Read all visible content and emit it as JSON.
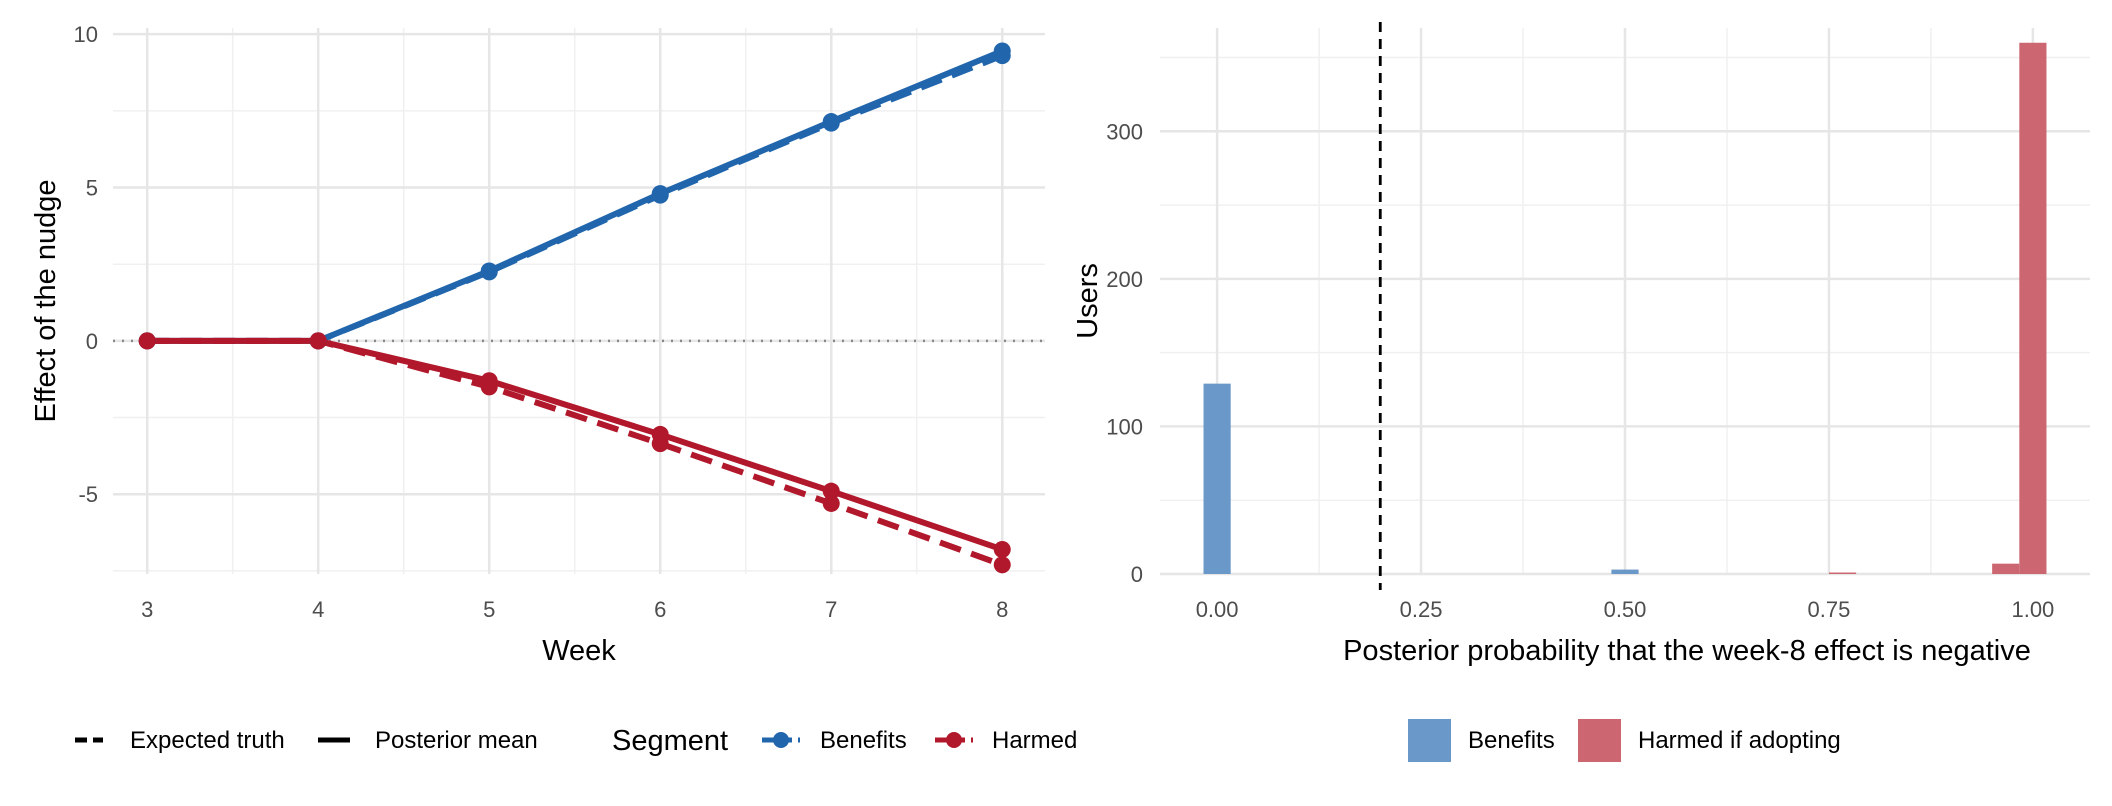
{
  "chart_data": [
    {
      "type": "line",
      "xlabel": "Week",
      "ylabel": "Effect of the nudge",
      "xlim": [
        2.8,
        8.25
      ],
      "ylim": [
        -7.6,
        10.2
      ],
      "x_ticks": [
        3,
        4,
        5,
        6,
        7,
        8
      ],
      "y_ticks": [
        -5,
        0,
        5,
        10
      ],
      "reference_line": {
        "y": 0,
        "style": "dotted"
      },
      "grid": true,
      "colors": {
        "Benefits": "#2166ac",
        "Harmed": "#b2182b"
      },
      "linetype_legend": [
        "Expected truth",
        "Posterior mean"
      ],
      "legend_title": "Segment",
      "legend_position": "bottom",
      "series": [
        {
          "name": "Benefits",
          "type": "Expected truth",
          "linestyle": "dashed",
          "x": [
            3,
            4,
            5,
            6,
            7,
            8
          ],
          "y": [
            0,
            0,
            2.25,
            4.75,
            7.1,
            9.3
          ]
        },
        {
          "name": "Benefits",
          "type": "Posterior mean",
          "linestyle": "solid",
          "x": [
            3,
            4,
            5,
            6,
            7,
            8
          ],
          "y": [
            0,
            0,
            2.28,
            4.8,
            7.15,
            9.45
          ]
        },
        {
          "name": "Harmed",
          "type": "Expected truth",
          "linestyle": "dashed",
          "x": [
            3,
            4,
            5,
            6,
            7,
            8
          ],
          "y": [
            0,
            0,
            -1.5,
            -3.35,
            -5.3,
            -7.3
          ]
        },
        {
          "name": "Harmed",
          "type": "Posterior mean",
          "linestyle": "solid",
          "x": [
            3,
            4,
            5,
            6,
            7,
            8
          ],
          "y": [
            0,
            0,
            -1.3,
            -3.05,
            -4.9,
            -6.8
          ]
        }
      ]
    },
    {
      "type": "bar",
      "xlabel": "Posterior probability that the week-8 effect is negative",
      "ylabel": "Users",
      "xlim": [
        -0.07,
        1.07
      ],
      "ylim": [
        0,
        370
      ],
      "x_ticks": [
        "0.00",
        "0.25",
        "0.50",
        "0.75",
        "1.00"
      ],
      "y_ticks": [
        0,
        100,
        200,
        300
      ],
      "reference_line": {
        "x": 0.2,
        "style": "dashed"
      },
      "grid": true,
      "legend_position": "bottom",
      "bin_width": 0.0333,
      "series": [
        {
          "name": "Benefits",
          "color": "#6a98c8",
          "bins": [
            {
              "x": 0.0,
              "count": 129
            },
            {
              "x": 0.5,
              "count": 3
            }
          ]
        },
        {
          "name": "Harmed if adopting",
          "color": "#cc6670",
          "bins": [
            {
              "x": 0.7667,
              "count": 1
            },
            {
              "x": 0.9667,
              "count": 7
            },
            {
              "x": 1.0,
              "count": 360
            }
          ]
        }
      ]
    }
  ]
}
